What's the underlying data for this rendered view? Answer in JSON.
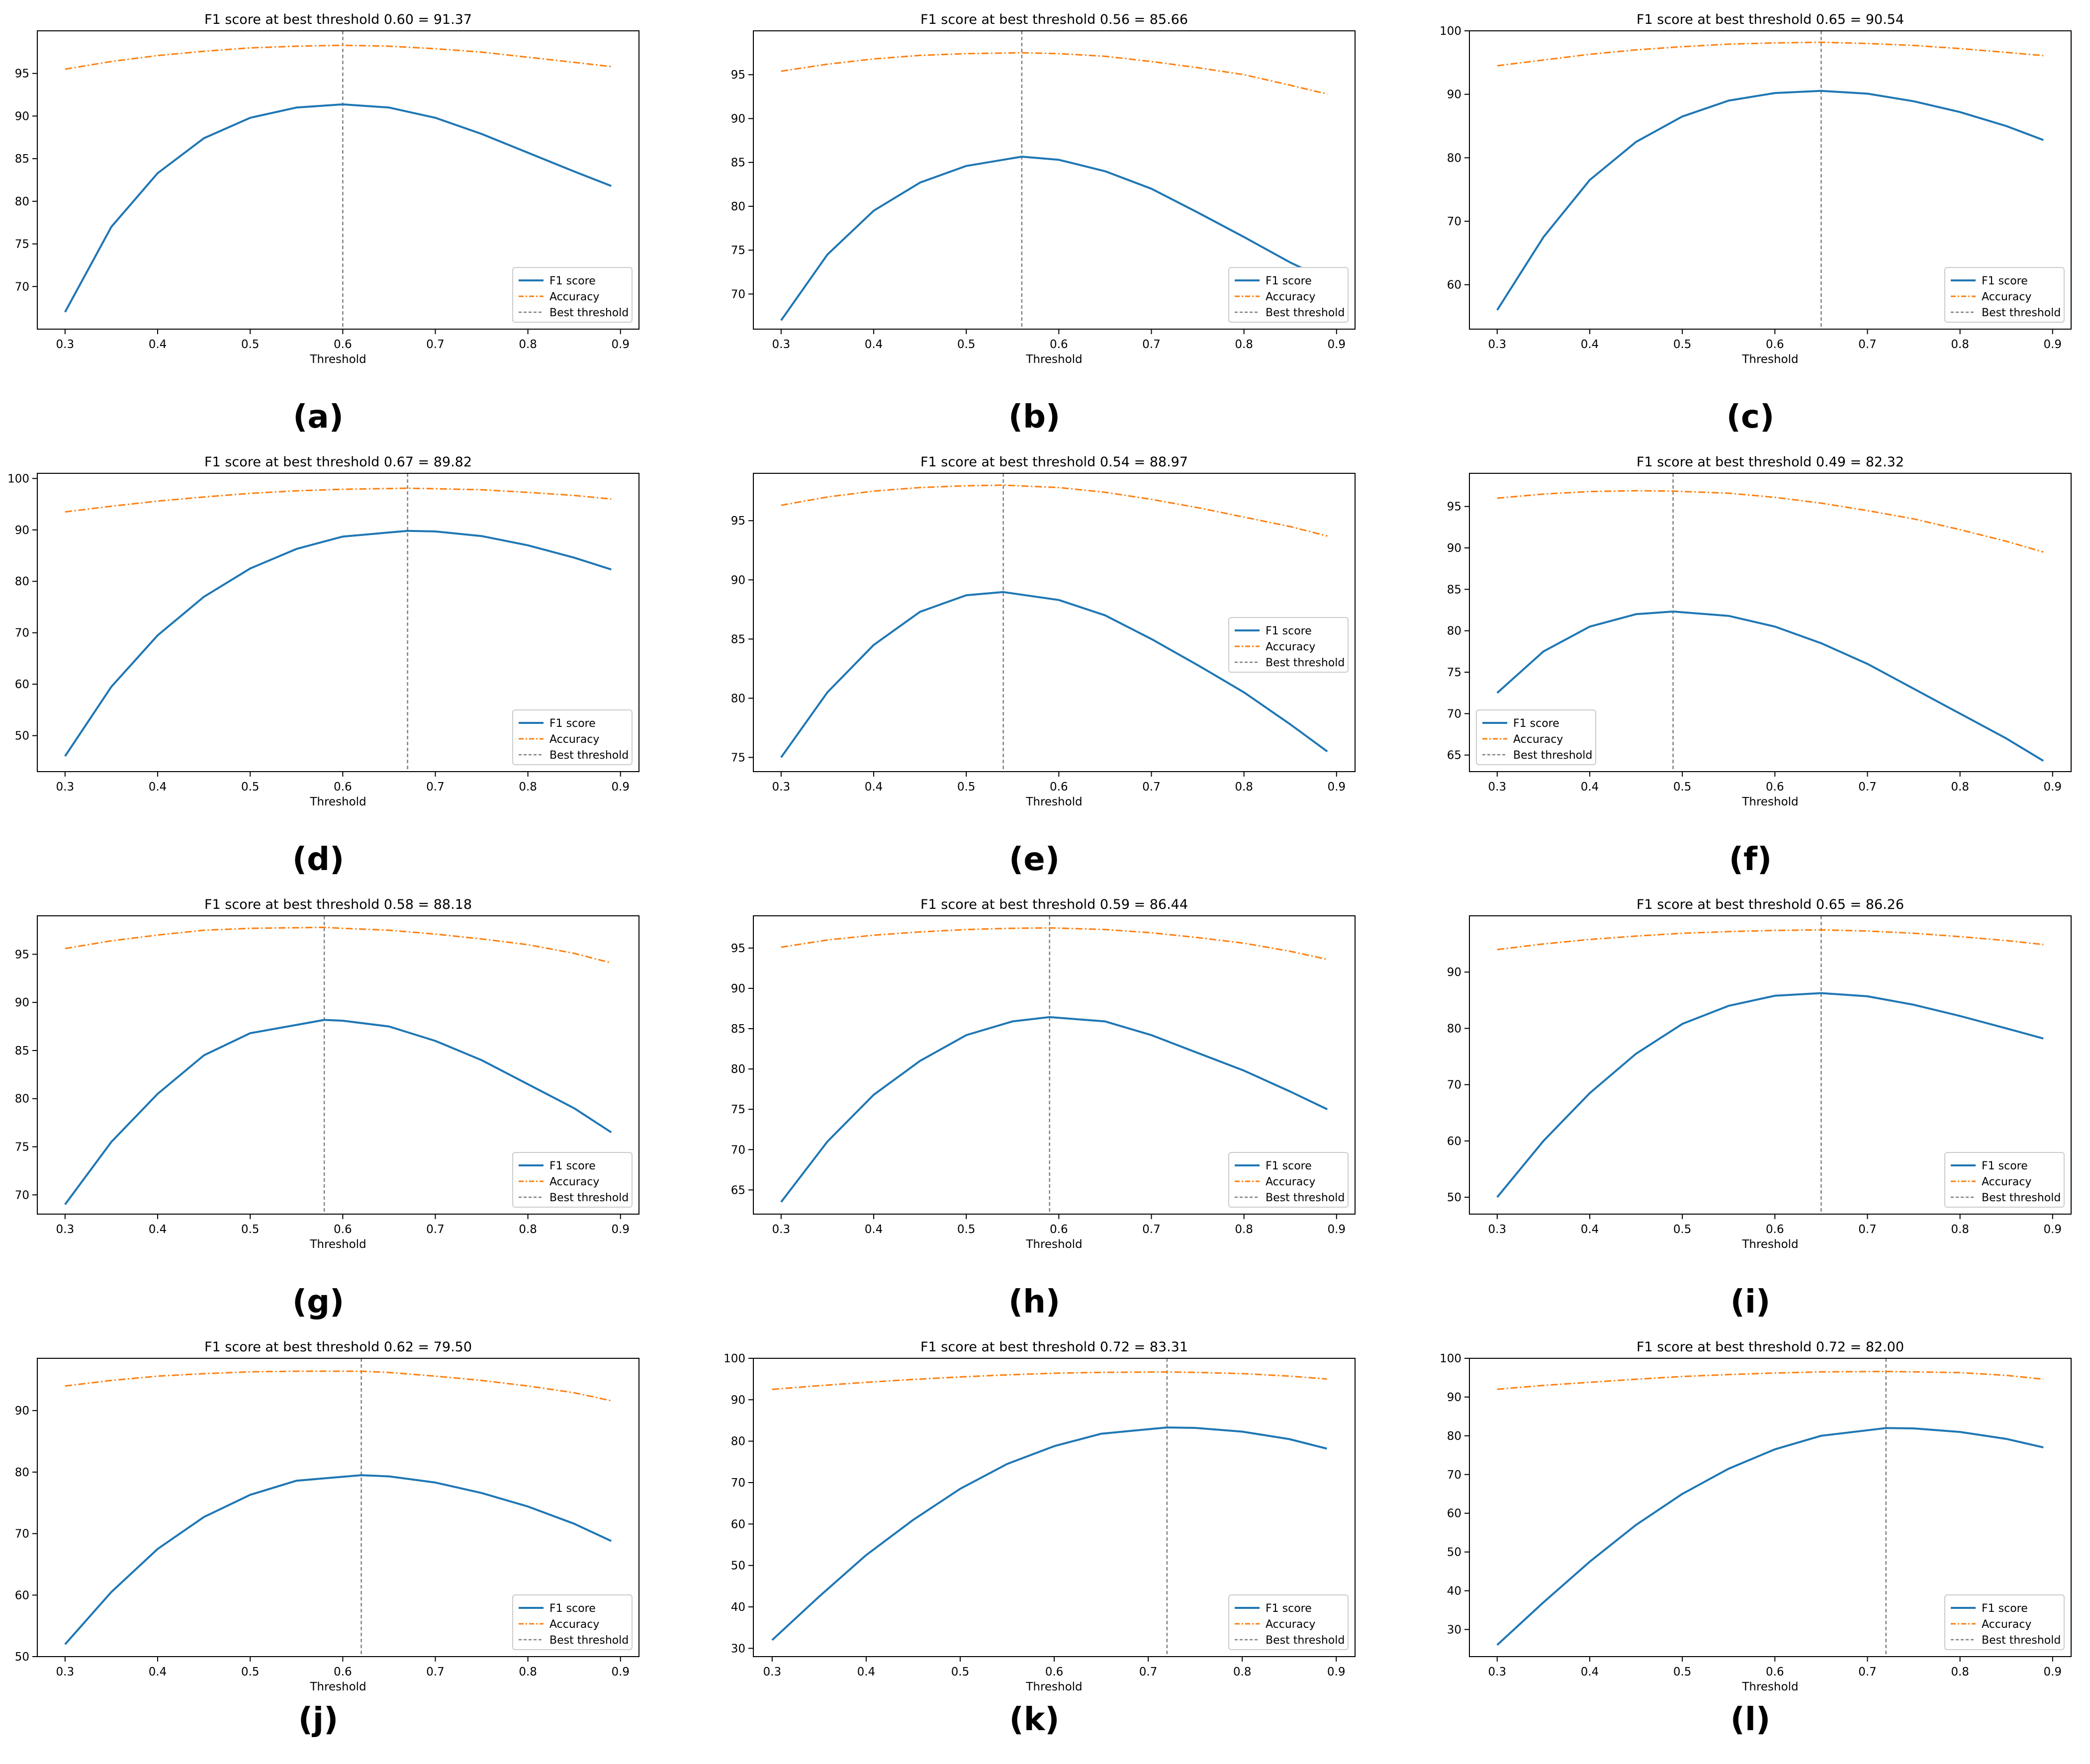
{
  "colors": {
    "f1": "#1f77b4",
    "accuracy": "#ff7f0e",
    "best": "#808080",
    "axis": "#000000",
    "legend_border": "#cccccc",
    "background": "#ffffff"
  },
  "legend_labels": [
    "F1 score",
    "Accuracy",
    "Best threshold"
  ],
  "chart_data": [
    {
      "type": "line",
      "panel_label": "(a)",
      "title": "F1 score at best threshold 0.60 = 91.37",
      "xlabel": "Threshold",
      "ylabel": "",
      "xlim": [
        0.27,
        0.92
      ],
      "ylim": [
        65,
        100
      ],
      "xticks": [
        0.3,
        0.4,
        0.5,
        0.6,
        0.7,
        0.8,
        0.9
      ],
      "yticks": [
        70,
        75,
        80,
        85,
        90,
        95
      ],
      "grid": false,
      "legend_position": "lower-right",
      "best_threshold": 0.6,
      "x": [
        0.3,
        0.35,
        0.4,
        0.45,
        0.5,
        0.55,
        0.6,
        0.65,
        0.7,
        0.75,
        0.8,
        0.85,
        0.89
      ],
      "series": [
        {
          "name": "F1 score",
          "values": [
            67.0,
            77.0,
            83.3,
            87.4,
            89.8,
            91.0,
            91.37,
            91.0,
            89.8,
            87.9,
            85.7,
            83.5,
            81.8
          ]
        },
        {
          "name": "Accuracy",
          "values": [
            95.5,
            96.4,
            97.1,
            97.6,
            98.0,
            98.2,
            98.3,
            98.2,
            97.9,
            97.5,
            96.9,
            96.3,
            95.8
          ]
        }
      ]
    },
    {
      "type": "line",
      "panel_label": "(b)",
      "title": "F1 score at best threshold 0.56 = 85.66",
      "xlabel": "Threshold",
      "ylabel": "",
      "xlim": [
        0.27,
        0.92
      ],
      "ylim": [
        66,
        100
      ],
      "xticks": [
        0.3,
        0.4,
        0.5,
        0.6,
        0.7,
        0.8,
        0.9
      ],
      "yticks": [
        70,
        75,
        80,
        85,
        90,
        95
      ],
      "grid": false,
      "legend_position": "lower-right",
      "best_threshold": 0.56,
      "x": [
        0.3,
        0.35,
        0.4,
        0.45,
        0.5,
        0.56,
        0.6,
        0.65,
        0.7,
        0.75,
        0.8,
        0.85,
        0.89
      ],
      "series": [
        {
          "name": "F1 score",
          "values": [
            67.0,
            74.5,
            79.5,
            82.7,
            84.6,
            85.66,
            85.3,
            84.0,
            82.0,
            79.3,
            76.5,
            73.6,
            71.6
          ]
        },
        {
          "name": "Accuracy",
          "values": [
            95.4,
            96.2,
            96.8,
            97.2,
            97.4,
            97.5,
            97.4,
            97.1,
            96.5,
            95.8,
            95.0,
            93.8,
            92.8
          ]
        }
      ]
    },
    {
      "type": "line",
      "panel_label": "(c)",
      "title": "F1 score at best threshold 0.65 = 90.54",
      "xlabel": "Threshold",
      "ylabel": "",
      "xlim": [
        0.27,
        0.92
      ],
      "ylim": [
        53,
        100
      ],
      "xticks": [
        0.3,
        0.4,
        0.5,
        0.6,
        0.7,
        0.8,
        0.9
      ],
      "yticks": [
        60,
        70,
        80,
        90,
        100
      ],
      "grid": false,
      "legend_position": "lower-right",
      "best_threshold": 0.65,
      "x": [
        0.3,
        0.35,
        0.4,
        0.45,
        0.5,
        0.55,
        0.6,
        0.65,
        0.7,
        0.75,
        0.8,
        0.85,
        0.89
      ],
      "series": [
        {
          "name": "F1 score",
          "values": [
            56.0,
            67.5,
            76.5,
            82.5,
            86.5,
            89.0,
            90.2,
            90.54,
            90.1,
            88.9,
            87.2,
            85.0,
            82.8
          ]
        },
        {
          "name": "Accuracy",
          "values": [
            94.5,
            95.4,
            96.3,
            97.0,
            97.5,
            97.9,
            98.1,
            98.2,
            98.0,
            97.7,
            97.2,
            96.6,
            96.1
          ]
        }
      ]
    },
    {
      "type": "line",
      "panel_label": "(d)",
      "title": "F1 score at best threshold 0.67 = 89.82",
      "xlabel": "Threshold",
      "ylabel": "",
      "xlim": [
        0.27,
        0.92
      ],
      "ylim": [
        43,
        101
      ],
      "xticks": [
        0.3,
        0.4,
        0.5,
        0.6,
        0.7,
        0.8,
        0.9
      ],
      "yticks": [
        50,
        60,
        70,
        80,
        90,
        100
      ],
      "grid": false,
      "legend_position": "lower-right",
      "best_threshold": 0.67,
      "x": [
        0.3,
        0.35,
        0.4,
        0.45,
        0.5,
        0.55,
        0.6,
        0.67,
        0.7,
        0.75,
        0.8,
        0.85,
        0.89
      ],
      "series": [
        {
          "name": "F1 score",
          "values": [
            46.0,
            59.5,
            69.5,
            77.0,
            82.5,
            86.3,
            88.7,
            89.82,
            89.7,
            88.8,
            87.0,
            84.6,
            82.3
          ]
        },
        {
          "name": "Accuracy",
          "values": [
            93.5,
            94.6,
            95.6,
            96.4,
            97.1,
            97.6,
            97.9,
            98.1,
            98.0,
            97.8,
            97.3,
            96.7,
            96.0
          ]
        }
      ]
    },
    {
      "type": "line",
      "panel_label": "(e)",
      "title": "F1 score at best threshold 0.54 = 88.97",
      "xlabel": "Threshold",
      "ylabel": "",
      "xlim": [
        0.27,
        0.92
      ],
      "ylim": [
        73.8,
        99
      ],
      "xticks": [
        0.3,
        0.4,
        0.5,
        0.6,
        0.7,
        0.8,
        0.9
      ],
      "yticks": [
        75,
        80,
        85,
        90,
        95
      ],
      "grid": false,
      "legend_position": "center-right",
      "best_threshold": 0.54,
      "x": [
        0.3,
        0.35,
        0.4,
        0.45,
        0.5,
        0.54,
        0.6,
        0.65,
        0.7,
        0.75,
        0.8,
        0.85,
        0.89
      ],
      "series": [
        {
          "name": "F1 score",
          "values": [
            75.0,
            80.5,
            84.5,
            87.3,
            88.7,
            88.97,
            88.3,
            87.0,
            85.0,
            82.8,
            80.5,
            77.8,
            75.5
          ]
        },
        {
          "name": "Accuracy",
          "values": [
            96.3,
            97.0,
            97.5,
            97.8,
            97.95,
            98.0,
            97.8,
            97.4,
            96.8,
            96.1,
            95.3,
            94.5,
            93.7
          ]
        }
      ]
    },
    {
      "type": "line",
      "panel_label": "(f)",
      "title": "F1 score at best threshold 0.49 = 82.32",
      "xlabel": "Threshold",
      "ylabel": "",
      "xlim": [
        0.27,
        0.92
      ],
      "ylim": [
        63,
        99
      ],
      "xticks": [
        0.3,
        0.4,
        0.5,
        0.6,
        0.7,
        0.8,
        0.9
      ],
      "yticks": [
        65,
        70,
        75,
        80,
        85,
        90,
        95
      ],
      "grid": false,
      "legend_position": "lower-left",
      "best_threshold": 0.49,
      "x": [
        0.3,
        0.35,
        0.4,
        0.45,
        0.49,
        0.55,
        0.6,
        0.65,
        0.7,
        0.75,
        0.8,
        0.85,
        0.89
      ],
      "series": [
        {
          "name": "F1 score",
          "values": [
            72.5,
            77.5,
            80.5,
            82.0,
            82.32,
            81.8,
            80.5,
            78.5,
            76.0,
            73.0,
            70.0,
            67.0,
            64.3
          ]
        },
        {
          "name": "Accuracy",
          "values": [
            96.0,
            96.5,
            96.8,
            96.9,
            96.85,
            96.6,
            96.1,
            95.4,
            94.5,
            93.5,
            92.2,
            90.8,
            89.5
          ]
        }
      ]
    },
    {
      "type": "line",
      "panel_label": "(g)",
      "title": "F1 score at best threshold 0.58 = 88.18",
      "xlabel": "Threshold",
      "ylabel": "",
      "xlim": [
        0.27,
        0.92
      ],
      "ylim": [
        68,
        99
      ],
      "xticks": [
        0.3,
        0.4,
        0.5,
        0.6,
        0.7,
        0.8,
        0.9
      ],
      "yticks": [
        70,
        75,
        80,
        85,
        90,
        95
      ],
      "grid": false,
      "legend_position": "lower-right",
      "best_threshold": 0.58,
      "x": [
        0.3,
        0.35,
        0.4,
        0.45,
        0.5,
        0.58,
        0.6,
        0.65,
        0.7,
        0.75,
        0.8,
        0.85,
        0.89
      ],
      "series": [
        {
          "name": "F1 score",
          "values": [
            69.0,
            75.5,
            80.5,
            84.5,
            86.8,
            88.18,
            88.1,
            87.5,
            86.0,
            84.0,
            81.5,
            79.0,
            76.5
          ]
        },
        {
          "name": "Accuracy",
          "values": [
            95.6,
            96.4,
            97.0,
            97.5,
            97.7,
            97.8,
            97.7,
            97.5,
            97.1,
            96.6,
            96.0,
            95.1,
            94.1
          ]
        }
      ]
    },
    {
      "type": "line",
      "panel_label": "(h)",
      "title": "F1 score at best threshold 0.59 = 86.44",
      "xlabel": "Threshold",
      "ylabel": "",
      "xlim": [
        0.27,
        0.92
      ],
      "ylim": [
        62,
        99
      ],
      "xticks": [
        0.3,
        0.4,
        0.5,
        0.6,
        0.7,
        0.8,
        0.9
      ],
      "yticks": [
        65,
        70,
        75,
        80,
        85,
        90,
        95
      ],
      "grid": false,
      "legend_position": "lower-right",
      "best_threshold": 0.59,
      "x": [
        0.3,
        0.35,
        0.4,
        0.45,
        0.5,
        0.55,
        0.59,
        0.65,
        0.7,
        0.75,
        0.8,
        0.85,
        0.89
      ],
      "series": [
        {
          "name": "F1 score",
          "values": [
            63.5,
            71.0,
            76.8,
            81.0,
            84.2,
            85.9,
            86.44,
            85.9,
            84.2,
            82.0,
            79.8,
            77.2,
            75.0
          ]
        },
        {
          "name": "Accuracy",
          "values": [
            95.1,
            96.0,
            96.6,
            97.0,
            97.3,
            97.45,
            97.5,
            97.3,
            96.9,
            96.3,
            95.6,
            94.6,
            93.6
          ]
        }
      ]
    },
    {
      "type": "line",
      "panel_label": "(i)",
      "title": "F1 score at best threshold 0.65 = 86.26",
      "xlabel": "Threshold",
      "ylabel": "",
      "xlim": [
        0.27,
        0.92
      ],
      "ylim": [
        47,
        100
      ],
      "xticks": [
        0.3,
        0.4,
        0.5,
        0.6,
        0.7,
        0.8,
        0.9
      ],
      "yticks": [
        50,
        60,
        70,
        80,
        90
      ],
      "grid": false,
      "legend_position": "lower-right",
      "best_threshold": 0.65,
      "x": [
        0.3,
        0.35,
        0.4,
        0.45,
        0.5,
        0.55,
        0.6,
        0.65,
        0.7,
        0.75,
        0.8,
        0.85,
        0.89
      ],
      "series": [
        {
          "name": "F1 score",
          "values": [
            50.0,
            60.0,
            68.5,
            75.5,
            80.8,
            84.0,
            85.8,
            86.26,
            85.7,
            84.2,
            82.2,
            80.0,
            78.2
          ]
        },
        {
          "name": "Accuracy",
          "values": [
            94.0,
            95.0,
            95.8,
            96.4,
            96.9,
            97.2,
            97.4,
            97.5,
            97.3,
            96.9,
            96.3,
            95.6,
            94.9
          ]
        }
      ]
    },
    {
      "type": "line",
      "panel_label": "(j)",
      "title": "F1 score at best threshold 0.62 = 79.50",
      "xlabel": "Threshold",
      "ylabel": "",
      "xlim": [
        0.27,
        0.92
      ],
      "ylim": [
        50,
        98.5
      ],
      "xticks": [
        0.3,
        0.4,
        0.5,
        0.6,
        0.7,
        0.8,
        0.9
      ],
      "yticks": [
        50,
        60,
        70,
        80,
        90
      ],
      "grid": false,
      "legend_position": "lower-right",
      "best_threshold": 0.62,
      "x": [
        0.3,
        0.35,
        0.4,
        0.45,
        0.5,
        0.55,
        0.62,
        0.65,
        0.7,
        0.75,
        0.8,
        0.85,
        0.89
      ],
      "series": [
        {
          "name": "F1 score",
          "values": [
            52.0,
            60.5,
            67.5,
            72.7,
            76.3,
            78.6,
            79.5,
            79.3,
            78.3,
            76.6,
            74.4,
            71.6,
            68.8
          ]
        },
        {
          "name": "Accuracy",
          "values": [
            94.0,
            94.9,
            95.6,
            96.0,
            96.3,
            96.4,
            96.4,
            96.2,
            95.6,
            94.9,
            94.0,
            92.9,
            91.6
          ]
        }
      ]
    },
    {
      "type": "line",
      "panel_label": "(k)",
      "title": "F1 score at best threshold 0.72 = 83.31",
      "xlabel": "Threshold",
      "ylabel": "",
      "xlim": [
        0.28,
        0.92
      ],
      "ylim": [
        28,
        100
      ],
      "xticks": [
        0.3,
        0.4,
        0.5,
        0.6,
        0.7,
        0.8,
        0.9
      ],
      "yticks": [
        30,
        40,
        50,
        60,
        70,
        80,
        90,
        100
      ],
      "grid": false,
      "legend_position": "lower-right",
      "best_threshold": 0.72,
      "x": [
        0.3,
        0.35,
        0.4,
        0.45,
        0.5,
        0.55,
        0.6,
        0.65,
        0.72,
        0.75,
        0.8,
        0.85,
        0.89
      ],
      "series": [
        {
          "name": "F1 score",
          "values": [
            32.0,
            42.5,
            52.5,
            61.0,
            68.5,
            74.5,
            78.8,
            81.8,
            83.31,
            83.2,
            82.3,
            80.5,
            78.2
          ]
        },
        {
          "name": "Accuracy",
          "values": [
            92.5,
            93.4,
            94.2,
            94.9,
            95.5,
            96.0,
            96.4,
            96.6,
            96.7,
            96.6,
            96.3,
            95.7,
            95.0
          ]
        }
      ]
    },
    {
      "type": "line",
      "panel_label": "(l)",
      "title": "F1 score at best threshold 0.72 = 82.00",
      "xlabel": "Threshold",
      "ylabel": "",
      "xlim": [
        0.27,
        0.92
      ],
      "ylim": [
        23,
        100
      ],
      "xticks": [
        0.3,
        0.4,
        0.5,
        0.6,
        0.7,
        0.8,
        0.9
      ],
      "yticks": [
        30,
        40,
        50,
        60,
        70,
        80,
        90,
        100
      ],
      "grid": false,
      "legend_position": "lower-right",
      "best_threshold": 0.72,
      "x": [
        0.3,
        0.35,
        0.4,
        0.45,
        0.5,
        0.55,
        0.6,
        0.65,
        0.72,
        0.75,
        0.8,
        0.85,
        0.89
      ],
      "series": [
        {
          "name": "F1 score",
          "values": [
            26.0,
            37.0,
            47.5,
            57.0,
            65.0,
            71.5,
            76.5,
            80.0,
            82.0,
            81.9,
            81.0,
            79.2,
            77.0
          ]
        },
        {
          "name": "Accuracy",
          "values": [
            92.0,
            93.0,
            93.8,
            94.6,
            95.3,
            95.8,
            96.2,
            96.5,
            96.6,
            96.5,
            96.3,
            95.6,
            94.6
          ]
        }
      ]
    }
  ]
}
